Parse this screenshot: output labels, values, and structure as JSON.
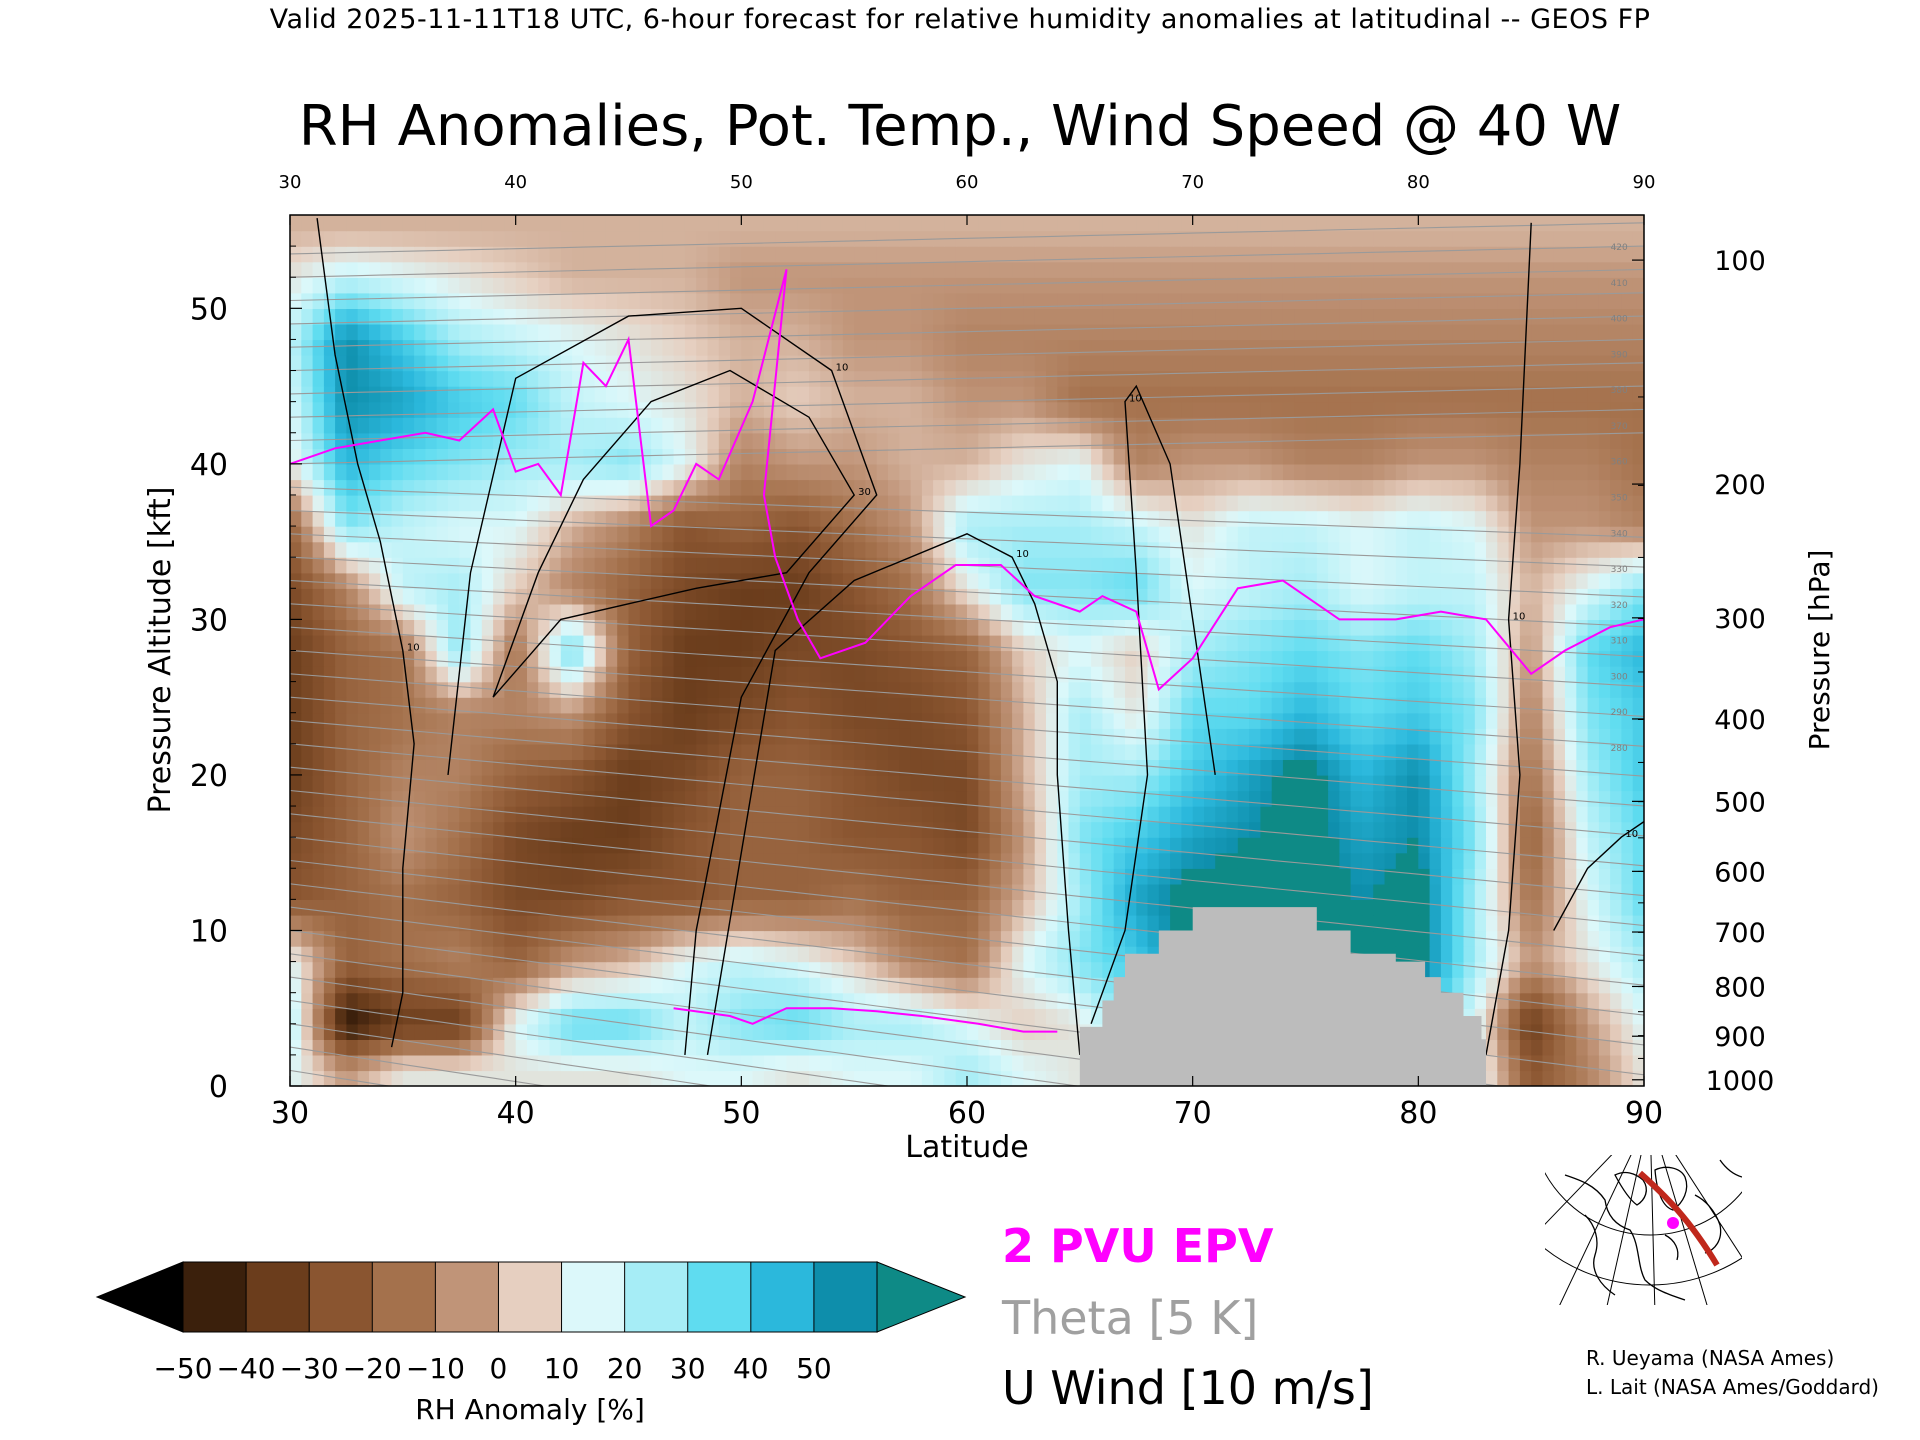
{
  "header": {
    "valid_line": "Valid 2025-11-11T18 UTC, 6-hour forecast for relative humidity anomalies at latitudinal -- GEOS FP"
  },
  "chart_data": {
    "type": "heatmap",
    "title": "RH Anomalies, Pot. Temp., Wind Speed @ 40 W",
    "xlabel": "Latitude",
    "ylabel_left": "Pressure Altitude [kft]",
    "ylabel_right": "Pressure [hPa]",
    "xlim": [
      30,
      90
    ],
    "ylim": [
      0,
      56
    ],
    "x_ticks": [
      "30",
      "40",
      "50",
      "60",
      "70",
      "80",
      "90"
    ],
    "y_ticks_left": [
      "0",
      "10",
      "20",
      "30",
      "40",
      "50"
    ],
    "y_ticks_right": [
      {
        "label": "100",
        "kft": 53.1
      },
      {
        "label": "200",
        "kft": 38.7
      },
      {
        "label": "300",
        "kft": 30.1
      },
      {
        "label": "400",
        "kft": 23.6
      },
      {
        "label": "500",
        "kft": 18.3
      },
      {
        "label": "600",
        "kft": 13.8
      },
      {
        "label": "700",
        "kft": 9.9
      },
      {
        "label": "800",
        "kft": 6.4
      },
      {
        "label": "900",
        "kft": 3.2
      },
      {
        "label": "1000",
        "kft": 0.4
      }
    ],
    "colorbar": {
      "label": "RH Anomaly [%]",
      "ticks": [
        "−50",
        "−40",
        "−30",
        "−20",
        "−10",
        "0",
        "10",
        "20",
        "30",
        "40",
        "50"
      ],
      "colors": [
        "#3b200c",
        "#6b3d1c",
        "#8a5530",
        "#a4714c",
        "#c09478",
        "#e6cfc0",
        "#dcf8fa",
        "#a6edf6",
        "#5fdcf0",
        "#2bb8dc",
        "#0e8eab"
      ],
      "under_color": "#000000",
      "over_color": "#0e8a86"
    },
    "rh_field": {
      "lats": [
        30,
        32.5,
        35,
        37.5,
        40,
        42.5,
        45,
        47.5,
        50,
        52.5,
        55,
        57.5,
        60,
        62.5,
        65,
        67.5,
        70,
        72.5,
        75,
        77.5,
        80,
        82.5,
        85,
        87.5,
        90
      ],
      "levels_kft": [
        1,
        4,
        8,
        12,
        16,
        20,
        24,
        28,
        32,
        36,
        40,
        44,
        48,
        52,
        55
      ],
      "values": [
        [
          10,
          -10,
          5,
          5,
          5,
          5,
          5,
          10,
          10,
          5,
          10,
          10,
          20,
          10,
          5,
          20,
          25,
          25,
          30,
          25,
          25,
          15,
          -30,
          -15,
          5
        ],
        [
          20,
          -55,
          -40,
          -40,
          10,
          30,
          30,
          15,
          25,
          30,
          20,
          20,
          10,
          0,
          5,
          30,
          40,
          40,
          45,
          40,
          40,
          10,
          -40,
          -10,
          10
        ],
        [
          10,
          -25,
          -20,
          -15,
          -25,
          -10,
          -5,
          10,
          15,
          10,
          0,
          -15,
          -20,
          10,
          25,
          35,
          55,
          55,
          55,
          55,
          55,
          20,
          -10,
          5,
          20
        ],
        [
          -30,
          -25,
          -20,
          -25,
          -35,
          -35,
          -30,
          -30,
          -25,
          -25,
          -20,
          -25,
          -25,
          -5,
          20,
          45,
          55,
          55,
          55,
          50,
          55,
          20,
          -20,
          10,
          30
        ],
        [
          -35,
          -25,
          -10,
          -20,
          -35,
          -40,
          -40,
          -30,
          -25,
          -25,
          -30,
          -30,
          -35,
          -10,
          25,
          35,
          45,
          50,
          55,
          45,
          50,
          25,
          -25,
          15,
          30
        ],
        [
          -40,
          -25,
          -15,
          -15,
          -25,
          -30,
          -40,
          -35,
          -25,
          -25,
          -30,
          -35,
          -35,
          -5,
          20,
          20,
          35,
          45,
          55,
          40,
          50,
          20,
          -20,
          20,
          35
        ],
        [
          -40,
          -25,
          -20,
          -15,
          -15,
          -10,
          -30,
          -40,
          -35,
          -30,
          -35,
          -35,
          -30,
          -5,
          20,
          5,
          30,
          30,
          40,
          30,
          35,
          25,
          -15,
          25,
          35
        ],
        [
          -40,
          -25,
          -20,
          25,
          -20,
          30,
          -25,
          -40,
          -40,
          -35,
          -35,
          -30,
          -25,
          0,
          10,
          0,
          20,
          25,
          30,
          25,
          30,
          20,
          -10,
          30,
          40
        ],
        [
          -35,
          -15,
          15,
          20,
          0,
          -15,
          -25,
          -35,
          -40,
          -40,
          -30,
          -20,
          5,
          25,
          25,
          30,
          10,
          15,
          20,
          10,
          15,
          15,
          -5,
          10,
          25
        ],
        [
          -25,
          25,
          15,
          10,
          10,
          -5,
          -15,
          -30,
          -25,
          -30,
          -20,
          -10,
          20,
          20,
          20,
          15,
          5,
          15,
          15,
          10,
          15,
          10,
          -10,
          -10,
          -15
        ],
        [
          5,
          40,
          30,
          25,
          20,
          20,
          25,
          10,
          -15,
          -10,
          -10,
          -5,
          -5,
          5,
          10,
          -15,
          -10,
          -10,
          -15,
          -15,
          -10,
          -10,
          -15,
          -15,
          -20
        ],
        [
          10,
          50,
          45,
          35,
          30,
          15,
          10,
          5,
          -5,
          0,
          -5,
          -5,
          -10,
          -10,
          -20,
          -20,
          -20,
          -20,
          -20,
          -20,
          -20,
          -20,
          -20,
          -20,
          -20
        ],
        [
          15,
          50,
          35,
          20,
          15,
          10,
          5,
          0,
          -5,
          -5,
          -10,
          -10,
          -15,
          -15,
          -15,
          -15,
          -15,
          -15,
          -15,
          -15,
          -15,
          -15,
          -15,
          -15,
          -15
        ],
        [
          5,
          15,
          10,
          5,
          0,
          -5,
          -5,
          -5,
          -10,
          -10,
          -10,
          -10,
          -10,
          -10,
          -10,
          -10,
          -10,
          -10,
          -10,
          -10,
          -10,
          -10,
          -10,
          -10,
          -10
        ],
        [
          -5,
          -5,
          -5,
          -5,
          -5,
          -5,
          -5,
          -5,
          -5,
          -5,
          -5,
          -5,
          -5,
          -5,
          -5,
          -5,
          -5,
          -5,
          -5,
          -5,
          -5,
          -5,
          -5,
          -5,
          -5
        ]
      ]
    },
    "terrain": [
      {
        "lat": 65.0,
        "kft": 3.8
      },
      {
        "lat": 66.0,
        "kft": 5.5
      },
      {
        "lat": 66.5,
        "kft": 7.0
      },
      {
        "lat": 67.0,
        "kft": 8.5
      },
      {
        "lat": 68.5,
        "kft": 10.0
      },
      {
        "lat": 70.0,
        "kft": 11.5
      },
      {
        "lat": 75.0,
        "kft": 11.5
      },
      {
        "lat": 75.5,
        "kft": 10.0
      },
      {
        "lat": 77.0,
        "kft": 8.5
      },
      {
        "lat": 79.0,
        "kft": 8.0
      },
      {
        "lat": 80.3,
        "kft": 7.0
      },
      {
        "lat": 81.0,
        "kft": 6.0
      },
      {
        "lat": 82.0,
        "kft": 4.5
      },
      {
        "lat": 82.8,
        "kft": 3.0
      },
      {
        "lat": 83.0,
        "kft": 0.0
      }
    ],
    "theta_labels": [
      "420",
      "410",
      "400",
      "390",
      "380",
      "370",
      "360",
      "350",
      "340",
      "330",
      "320",
      "310",
      "300",
      "290",
      "280"
    ],
    "epv_2pvu": [
      {
        "lat": 30.0,
        "kft": 40.0
      },
      {
        "lat": 32.0,
        "kft": 41.0
      },
      {
        "lat": 34.0,
        "kft": 41.5
      },
      {
        "lat": 36.0,
        "kft": 42.0
      },
      {
        "lat": 37.5,
        "kft": 41.5
      },
      {
        "lat": 39.0,
        "kft": 43.5
      },
      {
        "lat": 40.0,
        "kft": 39.5
      },
      {
        "lat": 41.0,
        "kft": 40.0
      },
      {
        "lat": 42.0,
        "kft": 38.0
      },
      {
        "lat": 43.0,
        "kft": 46.5
      },
      {
        "lat": 44.0,
        "kft": 45.0
      },
      {
        "lat": 45.0,
        "kft": 48.0
      },
      {
        "lat": 46.0,
        "kft": 36.0
      },
      {
        "lat": 47.0,
        "kft": 37.0
      },
      {
        "lat": 48.0,
        "kft": 40.0
      },
      {
        "lat": 49.0,
        "kft": 39.0
      },
      {
        "lat": 50.5,
        "kft": 44.0
      },
      {
        "lat": 52.0,
        "kft": 52.5
      },
      {
        "lat": 51.0,
        "kft": 38.0
      },
      {
        "lat": 51.5,
        "kft": 34.0
      },
      {
        "lat": 52.5,
        "kft": 30.0
      },
      {
        "lat": 53.5,
        "kft": 27.5
      },
      {
        "lat": 55.5,
        "kft": 28.5
      },
      {
        "lat": 57.5,
        "kft": 31.5
      },
      {
        "lat": 59.5,
        "kft": 33.5
      },
      {
        "lat": 61.5,
        "kft": 33.5
      },
      {
        "lat": 63.0,
        "kft": 31.5
      },
      {
        "lat": 65.0,
        "kft": 30.5
      },
      {
        "lat": 66.0,
        "kft": 31.5
      },
      {
        "lat": 67.5,
        "kft": 30.5
      },
      {
        "lat": 68.5,
        "kft": 25.5
      },
      {
        "lat": 70.0,
        "kft": 27.5
      },
      {
        "lat": 72.0,
        "kft": 32.0
      },
      {
        "lat": 74.0,
        "kft": 32.5
      },
      {
        "lat": 76.5,
        "kft": 30.0
      },
      {
        "lat": 79.0,
        "kft": 30.0
      },
      {
        "lat": 81.0,
        "kft": 30.5
      },
      {
        "lat": 83.0,
        "kft": 30.0
      },
      {
        "lat": 85.0,
        "kft": 26.5
      },
      {
        "lat": 86.5,
        "kft": 28.0
      },
      {
        "lat": 88.5,
        "kft": 29.5
      },
      {
        "lat": 90.0,
        "kft": 30.0
      }
    ],
    "epv_2pvu_low": [
      {
        "lat": 47.0,
        "kft": 5.0
      },
      {
        "lat": 49.5,
        "kft": 4.5
      },
      {
        "lat": 50.5,
        "kft": 4.0
      },
      {
        "lat": 52.0,
        "kft": 5.0
      },
      {
        "lat": 54.0,
        "kft": 5.0
      },
      {
        "lat": 56.0,
        "kft": 4.8
      },
      {
        "lat": 58.0,
        "kft": 4.5
      },
      {
        "lat": 60.5,
        "kft": 4.0
      },
      {
        "lat": 62.5,
        "kft": 3.5
      },
      {
        "lat": 64.0,
        "kft": 3.5
      }
    ],
    "u_wind_contours": [
      {
        "label": "10",
        "points": [
          [
            31.2,
            55.8
          ],
          [
            32.0,
            47.0
          ],
          [
            33.0,
            40.0
          ],
          [
            34.0,
            35.0
          ],
          [
            35.0,
            28.0
          ],
          [
            35.5,
            22.0
          ],
          [
            35.0,
            14.0
          ],
          [
            35.0,
            6.0
          ],
          [
            34.5,
            2.5
          ]
        ]
      },
      {
        "label": "30",
        "points": [
          [
            39.0,
            25.0
          ],
          [
            41.0,
            33.0
          ],
          [
            43.0,
            39.0
          ],
          [
            46.0,
            44.0
          ],
          [
            49.5,
            46.0
          ],
          [
            53.0,
            43.0
          ],
          [
            55.0,
            38.0
          ],
          [
            52.0,
            33.0
          ],
          [
            48.0,
            32.0
          ],
          [
            45.0,
            31.0
          ],
          [
            42.0,
            30.0
          ],
          [
            40.5,
            27.5
          ],
          [
            39.0,
            25.0
          ]
        ]
      },
      {
        "label": "10",
        "points": [
          [
            37.0,
            20.0
          ],
          [
            38.0,
            33.0
          ],
          [
            40.0,
            45.5
          ],
          [
            45.0,
            49.5
          ],
          [
            50.0,
            50.0
          ],
          [
            54.0,
            46.0
          ],
          [
            56.0,
            38.0
          ],
          [
            53.0,
            33.0
          ],
          [
            50.0,
            25.0
          ],
          [
            48.0,
            10.0
          ],
          [
            47.5,
            2.0
          ]
        ]
      },
      {
        "label": "10",
        "points": [
          [
            48.5,
            2.0
          ],
          [
            50.0,
            15.0
          ],
          [
            51.5,
            28.0
          ],
          [
            55.0,
            32.5
          ],
          [
            60.0,
            35.5
          ],
          [
            62.0,
            34.0
          ],
          [
            63.0,
            31.0
          ],
          [
            64.0,
            26.0
          ],
          [
            64.0,
            20.0
          ],
          [
            64.5,
            10.0
          ],
          [
            65.0,
            2.0
          ]
        ]
      },
      {
        "label": "10",
        "points": [
          [
            65.5,
            4.0
          ],
          [
            67.0,
            10.0
          ],
          [
            68.0,
            20.0
          ],
          [
            67.5,
            33.0
          ],
          [
            67.0,
            44.0
          ],
          [
            67.5,
            45.0
          ],
          [
            69.0,
            40.0
          ],
          [
            70.0,
            30.0
          ],
          [
            71.0,
            20.0
          ]
        ]
      },
      {
        "label": "10",
        "points": [
          [
            83.0,
            2.0
          ],
          [
            84.0,
            10.0
          ],
          [
            84.5,
            20.0
          ],
          [
            84.0,
            30.0
          ],
          [
            84.5,
            40.0
          ],
          [
            85.0,
            55.5
          ]
        ]
      },
      {
        "label": "10",
        "points": [
          [
            86.0,
            10.0
          ],
          [
            87.5,
            14.0
          ],
          [
            89.0,
            16.0
          ],
          [
            90.0,
            17.0
          ]
        ]
      }
    ]
  },
  "legend": {
    "epv_label": "2 PVU EPV",
    "epv_color": "#ff00ff",
    "theta_label": "Theta [5 K]",
    "theta_color": "#a0a0a0",
    "wind_label": "U Wind [10 m/s]",
    "wind_color": "#000000"
  },
  "credits": {
    "line1": "R. Ueyama (NASA Ames)",
    "line2": "L. Lait (NASA Ames/Goddard)"
  },
  "colors": {
    "terrain": "#bcbcbc",
    "theta_line": "#9a9a9a",
    "track": "#c0281c",
    "track_point": "#ff00ff"
  }
}
